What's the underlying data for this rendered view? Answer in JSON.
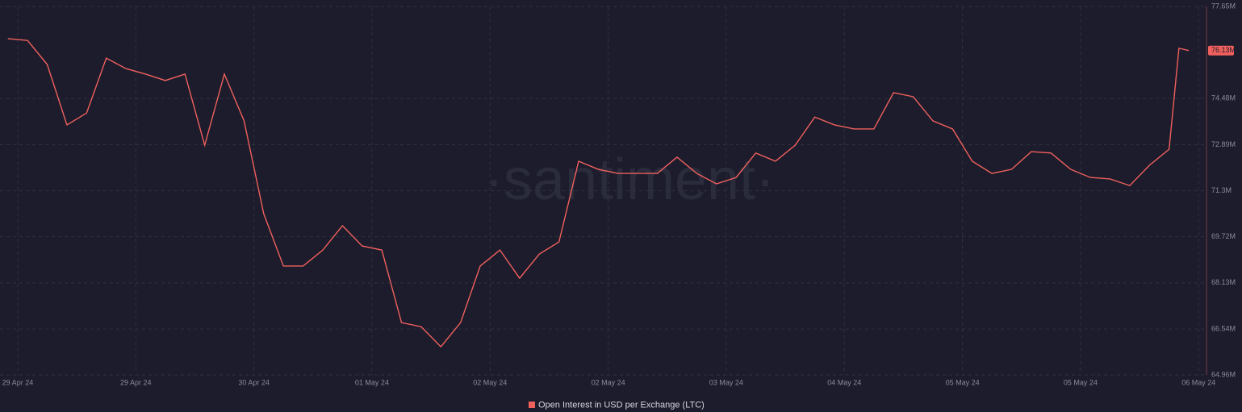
{
  "chart_data": {
    "type": "line",
    "watermark": "·santiment·",
    "x": [
      -1,
      1,
      3,
      5,
      7,
      9,
      11,
      13,
      15,
      17,
      19,
      21,
      23,
      25,
      27,
      29,
      31,
      33,
      35,
      37,
      39,
      41,
      43,
      45,
      47,
      49,
      51,
      53,
      55,
      57,
      59,
      61,
      63,
      65,
      67,
      69,
      71,
      73,
      75,
      77,
      79,
      81,
      83,
      85,
      87,
      89,
      91,
      93,
      95,
      97,
      99,
      101,
      103,
      105,
      107,
      109,
      111,
      113,
      115,
      117,
      118,
      119
    ],
    "series": [
      {
        "name": "Open Interest in USD per Exchange (LTC)",
        "color": "#f0605d",
        "values": [
          76.54,
          76.48,
          75.65,
          73.57,
          73.98,
          75.87,
          75.51,
          75.32,
          75.1,
          75.32,
          72.87,
          75.32,
          73.71,
          70.51,
          68.71,
          68.71,
          69.26,
          70.1,
          69.4,
          69.26,
          66.76,
          66.62,
          65.93,
          66.76,
          68.71,
          69.26,
          68.29,
          69.12,
          69.54,
          72.32,
          72.04,
          71.9,
          71.9,
          71.9,
          72.46,
          71.9,
          71.54,
          71.76,
          72.6,
          72.32,
          72.87,
          73.84,
          73.57,
          73.43,
          73.43,
          74.68,
          74.54,
          73.71,
          73.43,
          72.32,
          71.9,
          72.04,
          72.65,
          72.6,
          72.04,
          71.76,
          71.71,
          71.48,
          72.18,
          72.73,
          76.21,
          76.13
        ]
      }
    ],
    "current_value": {
      "value": 76.13,
      "label": "76.13M"
    },
    "xlim": [
      -1.8,
      120.8
    ],
    "xticks": [
      {
        "value": 0,
        "label": "29 Apr 24"
      },
      {
        "value": 12,
        "label": "29 Apr 24"
      },
      {
        "value": 24,
        "label": "30 Apr 24"
      },
      {
        "value": 36,
        "label": "01 May 24"
      },
      {
        "value": 48,
        "label": "02 May 24"
      },
      {
        "value": 60,
        "label": "02 May 24"
      },
      {
        "value": 72,
        "label": "03 May 24"
      },
      {
        "value": 84,
        "label": "04 May 24"
      },
      {
        "value": 96,
        "label": "05 May 24"
      },
      {
        "value": 108,
        "label": "05 May 24"
      },
      {
        "value": 120,
        "label": "06 May 24"
      }
    ],
    "ylim": [
      64.96,
      77.65
    ],
    "yticks": [
      {
        "value": 64.96,
        "label": "64.96M"
      },
      {
        "value": 66.54,
        "label": "66.54M"
      },
      {
        "value": 68.13,
        "label": "68.13M"
      },
      {
        "value": 69.72,
        "label": "69.72M"
      },
      {
        "value": 71.3,
        "label": "71.3M"
      },
      {
        "value": 72.89,
        "label": "72.89M"
      },
      {
        "value": 74.48,
        "label": "74.48M"
      },
      {
        "value": 77.65,
        "label": "77.65M"
      }
    ],
    "grid": true
  }
}
